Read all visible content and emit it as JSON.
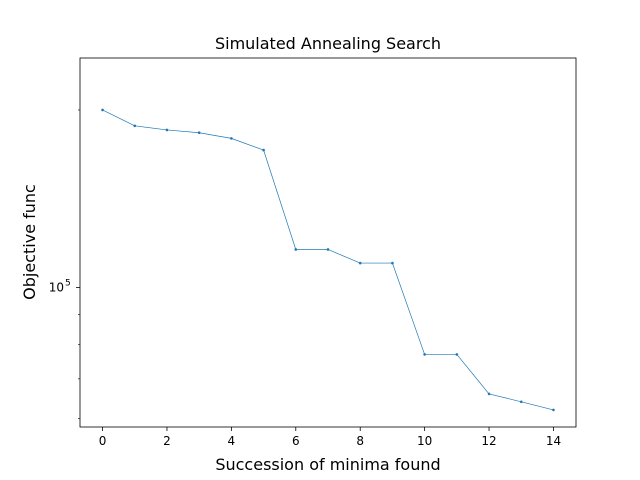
{
  "chart_data": {
    "type": "line",
    "title": "Simulated Annealing Search",
    "xlabel": "Succession of minima found",
    "ylabel": "Objective func",
    "y_scale": "log",
    "xlim": [
      -0.7,
      14.7
    ],
    "ylim": [
      58000,
      245000
    ],
    "x_ticks": [
      0,
      2,
      4,
      6,
      8,
      10,
      12,
      14
    ],
    "y_ticks": [
      {
        "value": 100000,
        "base": "10",
        "exponent": "5"
      }
    ],
    "grid": false,
    "line_color": "#1f77b4",
    "series": [
      {
        "x": [
          0,
          1,
          2,
          3,
          4,
          5,
          6,
          7,
          8,
          9,
          10,
          11,
          12,
          13,
          14
        ],
        "y": [
          200000,
          188000,
          185000,
          183000,
          179000,
          171000,
          116000,
          116000,
          110000,
          110000,
          77000,
          77000,
          66000,
          64000,
          62000
        ]
      }
    ]
  }
}
